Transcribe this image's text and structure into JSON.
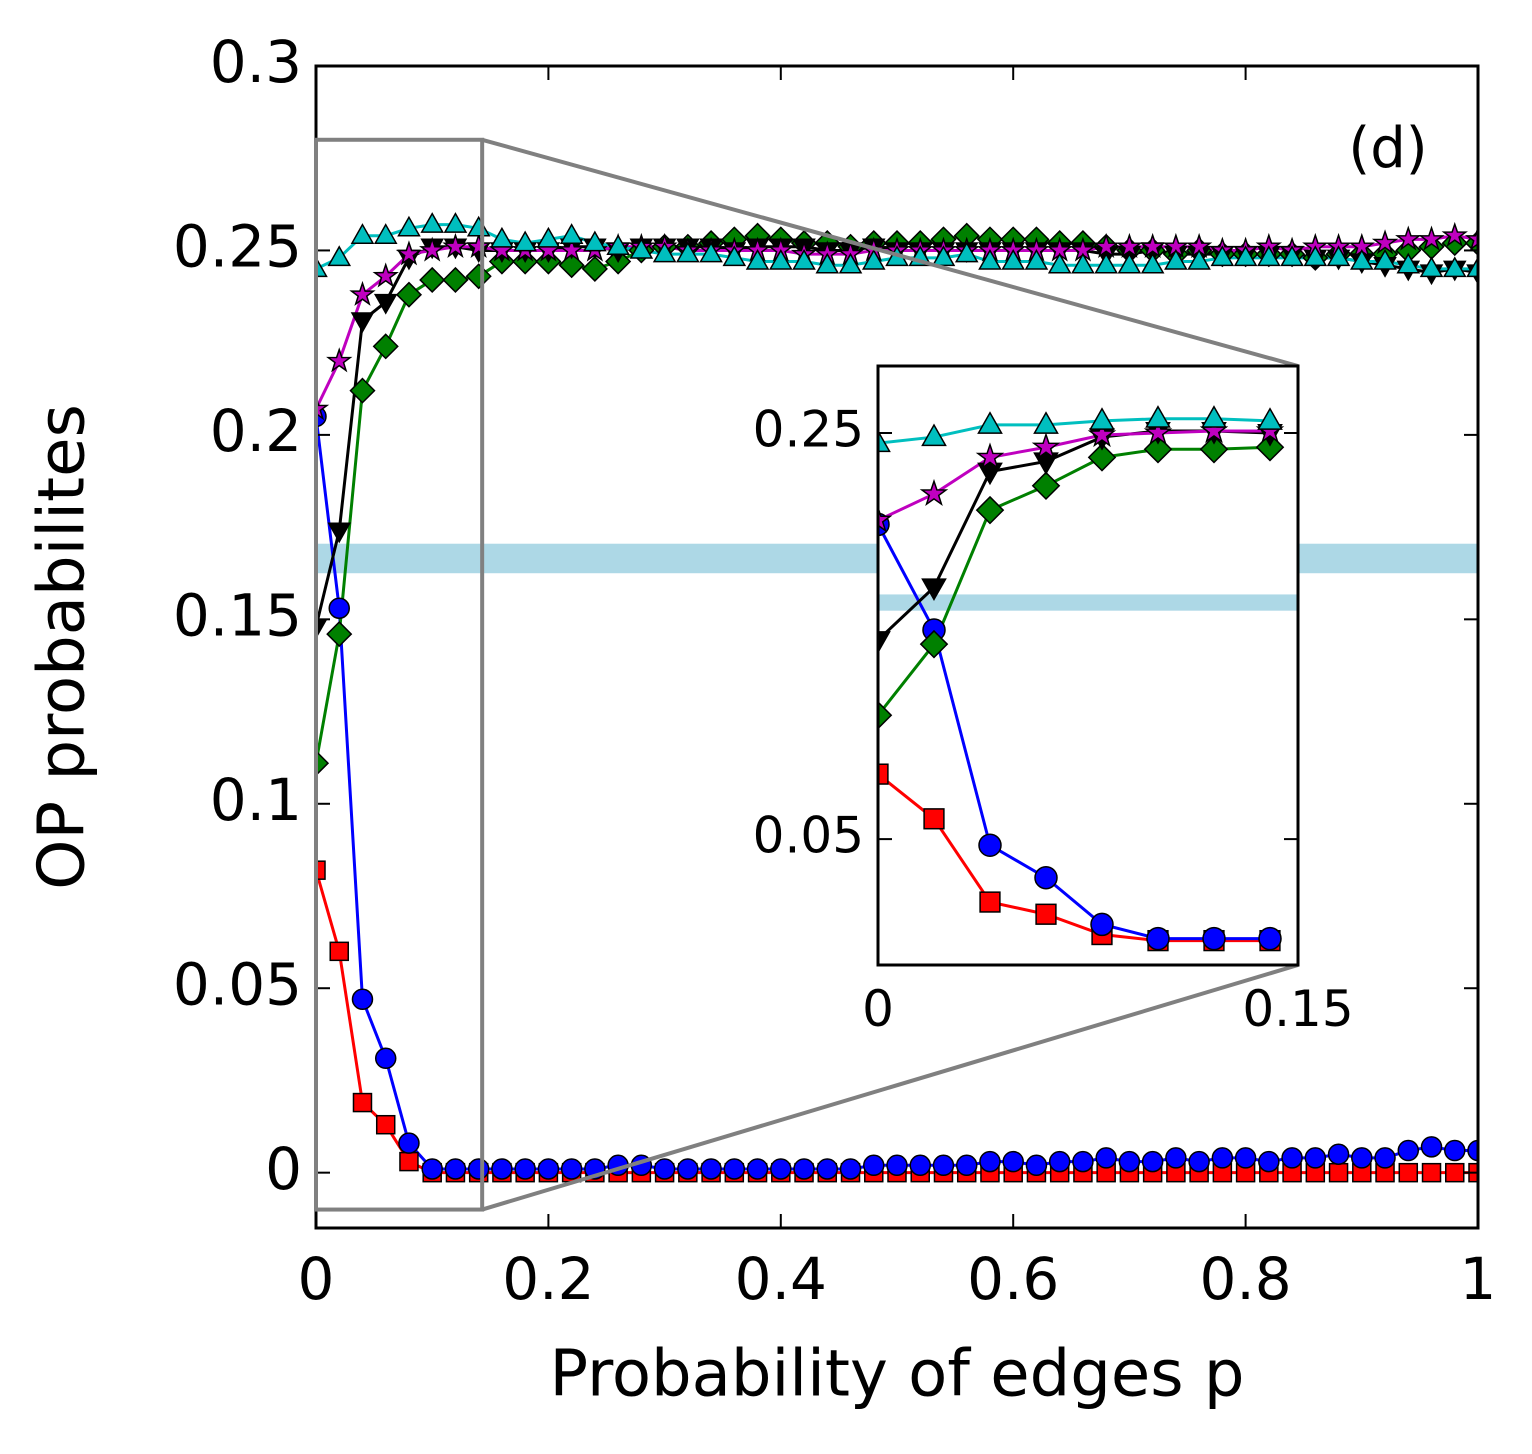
{
  "chart_data": {
    "type": "line",
    "annotation": "(d)",
    "xlabel": "Probability of edges p",
    "ylabel": "OP probabilites",
    "xlim": [
      0,
      1
    ],
    "ylim": [
      -0.015,
      0.3
    ],
    "xticks": [
      0,
      0.2,
      0.4,
      0.6,
      0.8,
      1
    ],
    "yticks": [
      0,
      0.05,
      0.1,
      0.15,
      0.2,
      0.25,
      0.3
    ],
    "hspan": [
      0.1625,
      0.1705
    ],
    "hspan_color": "#add8e6",
    "zoom_box": {
      "xlim": [
        0,
        0.143
      ],
      "ylim": [
        -0.01,
        0.28
      ],
      "color": "#808080"
    },
    "inset": {
      "xlim": [
        0,
        0.15
      ],
      "ylim": [
        -0.012,
        0.283
      ],
      "xticks": [
        0,
        0.15
      ],
      "yticks": [
        0.05,
        0.25
      ]
    },
    "x": [
      0,
      0.02,
      0.04,
      0.06,
      0.08,
      0.1,
      0.12,
      0.14,
      0.16,
      0.18,
      0.2,
      0.22,
      0.24,
      0.26,
      0.28,
      0.3,
      0.32,
      0.34,
      0.36,
      0.38,
      0.4,
      0.42,
      0.44,
      0.46,
      0.48,
      0.5,
      0.52,
      0.54,
      0.56,
      0.58,
      0.6,
      0.62,
      0.64,
      0.66,
      0.68,
      0.7,
      0.72,
      0.74,
      0.76,
      0.78,
      0.8,
      0.82,
      0.84,
      0.86,
      0.88,
      0.9,
      0.92,
      0.94,
      0.96,
      0.98,
      1
    ],
    "series": [
      {
        "color": "#ff0000",
        "marker": "s",
        "values": [
          0.082,
          0.06,
          0.019,
          0.013,
          0.003,
          0,
          0,
          0,
          0,
          0,
          0,
          0,
          0,
          0,
          0,
          0,
          0,
          0,
          0,
          0,
          0,
          0,
          0,
          0,
          0,
          0,
          0,
          0,
          0,
          0,
          0,
          0,
          0,
          0,
          0,
          0,
          0,
          0,
          0,
          0,
          0,
          0,
          0,
          0,
          0,
          0,
          0,
          0,
          0,
          0,
          0
        ]
      },
      {
        "color": "#0000ff",
        "marker": "o",
        "values": [
          0.205,
          0.153,
          0.047,
          0.031,
          0.008,
          0.001,
          0.001,
          0.001,
          0.001,
          0.001,
          0.001,
          0.001,
          0.001,
          0.002,
          0.002,
          0.001,
          0.001,
          0.001,
          0.001,
          0.001,
          0.001,
          0.001,
          0.001,
          0.001,
          0.002,
          0.002,
          0.002,
          0.002,
          0.002,
          0.003,
          0.003,
          0.002,
          0.003,
          0.003,
          0.004,
          0.003,
          0.003,
          0.004,
          0.003,
          0.004,
          0.004,
          0.003,
          0.004,
          0.004,
          0.005,
          0.004,
          0.004,
          0.006,
          0.007,
          0.006,
          0.006
        ]
      },
      {
        "color": "#008000",
        "marker": "D",
        "values": [
          0.111,
          0.146,
          0.212,
          0.224,
          0.238,
          0.242,
          0.242,
          0.243,
          0.247,
          0.247,
          0.247,
          0.246,
          0.245,
          0.247,
          0.25,
          0.251,
          0.251,
          0.252,
          0.253,
          0.254,
          0.253,
          0.252,
          0.252,
          0.251,
          0.252,
          0.252,
          0.252,
          0.253,
          0.254,
          0.253,
          0.253,
          0.253,
          0.252,
          0.252,
          0.251,
          0.25,
          0.25,
          0.249,
          0.25,
          0.249,
          0.249,
          0.249,
          0.249,
          0.248,
          0.249,
          0.249,
          0.249,
          0.25,
          0.251,
          0.252,
          0.252
        ]
      },
      {
        "color": "#000000",
        "marker": "v",
        "values": [
          0.148,
          0.174,
          0.231,
          0.236,
          0.248,
          0.251,
          0.251,
          0.25,
          0.25,
          0.25,
          0.25,
          0.251,
          0.251,
          0.25,
          0.251,
          0.251,
          0.251,
          0.251,
          0.25,
          0.251,
          0.251,
          0.251,
          0.25,
          0.25,
          0.251,
          0.25,
          0.25,
          0.25,
          0.25,
          0.25,
          0.25,
          0.25,
          0.25,
          0.25,
          0.249,
          0.249,
          0.25,
          0.249,
          0.249,
          0.249,
          0.249,
          0.249,
          0.249,
          0.248,
          0.248,
          0.247,
          0.246,
          0.245,
          0.244,
          0.245,
          0.244
        ]
      },
      {
        "color": "#bf00bf",
        "marker": "*",
        "values": [
          0.207,
          0.22,
          0.238,
          0.243,
          0.249,
          0.25,
          0.251,
          0.251,
          0.25,
          0.25,
          0.25,
          0.25,
          0.25,
          0.251,
          0.251,
          0.251,
          0.25,
          0.25,
          0.25,
          0.25,
          0.25,
          0.249,
          0.249,
          0.249,
          0.25,
          0.25,
          0.25,
          0.25,
          0.25,
          0.25,
          0.25,
          0.25,
          0.25,
          0.25,
          0.251,
          0.251,
          0.251,
          0.251,
          0.251,
          0.25,
          0.25,
          0.251,
          0.25,
          0.251,
          0.251,
          0.251,
          0.252,
          0.253,
          0.253,
          0.254,
          0.253
        ]
      },
      {
        "color": "#00bfbf",
        "marker": "^",
        "values": [
          0.245,
          0.248,
          0.254,
          0.254,
          0.256,
          0.257,
          0.257,
          0.256,
          0.253,
          0.252,
          0.253,
          0.254,
          0.252,
          0.251,
          0.25,
          0.249,
          0.249,
          0.249,
          0.248,
          0.247,
          0.247,
          0.247,
          0.246,
          0.246,
          0.247,
          0.248,
          0.248,
          0.248,
          0.249,
          0.247,
          0.247,
          0.247,
          0.246,
          0.246,
          0.246,
          0.246,
          0.246,
          0.247,
          0.247,
          0.248,
          0.248,
          0.248,
          0.248,
          0.248,
          0.248,
          0.247,
          0.247,
          0.246,
          0.245,
          0.245,
          0.245
        ]
      }
    ]
  }
}
